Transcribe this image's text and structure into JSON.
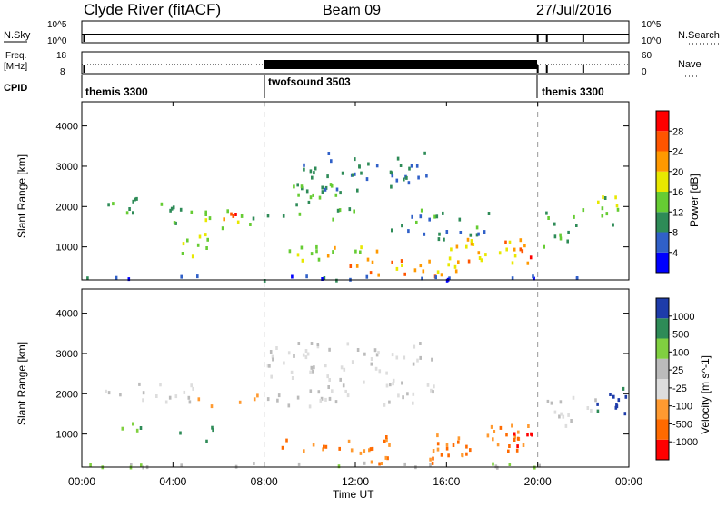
{
  "header": {
    "station": "Clyde River (fitACF)",
    "beam": "Beam 09",
    "date": "27/Jul/2016"
  },
  "status_panels": {
    "nsky_label": "N.Sky",
    "nsky_ticks": [
      "10^5",
      "10^0"
    ],
    "nsearch_label": "N.Search",
    "freq_label_1": "Freq.",
    "freq_label_2": "[MHz]",
    "freq_ticks": [
      "18",
      "8"
    ],
    "nave_label": "Nave",
    "nave_ticks": [
      "60",
      "0"
    ],
    "cpid_label": "CPID",
    "cpid_segments": [
      {
        "name": "themis 3300",
        "start_hour": 0.0,
        "end_hour": 8.0
      },
      {
        "name": "twofsound 3503",
        "start_hour": 8.0,
        "end_hour": 20.0
      },
      {
        "name": "themis 3300",
        "start_hour": 20.0,
        "end_hour": 24.0
      }
    ]
  },
  "colors": {
    "power": [
      "#0000ff",
      "#3060c8",
      "#2e8b57",
      "#66cc33",
      "#e8e800",
      "#ff9900",
      "#ff5500",
      "#ff0000"
    ],
    "velocity": [
      "#ff0000",
      "#ff6a00",
      "#ff9a30",
      "#dddddd",
      "#bbbbbb",
      "#80d040",
      "#2e8b57",
      "#1e3caa"
    ],
    "nsky_line": "#000000"
  },
  "chart_data": [
    {
      "type": "heatmap",
      "panel": "power",
      "ylabel": "Slant Range [km]",
      "y_ticks": [
        "4000",
        "3000",
        "2000",
        "1000"
      ],
      "ylim": [
        180,
        4600
      ],
      "xlim_hours": [
        0,
        24
      ],
      "colorbar_label": "Power [dB]",
      "colorbar_ticks": [
        "28",
        "24",
        "20",
        "16",
        "12",
        "8",
        "4"
      ],
      "colorbar_range": [
        0,
        32
      ],
      "scatter_regions": [
        {
          "h0": 0.8,
          "h1": 2.5,
          "r0": 1800,
          "r1": 2300,
          "level": 12
        },
        {
          "h0": 3.0,
          "h1": 4.2,
          "r0": 1900,
          "r1": 2300,
          "level": 10
        },
        {
          "h0": 4.0,
          "h1": 7.5,
          "r0": 1500,
          "r1": 2000,
          "level": 14
        },
        {
          "h0": 5.5,
          "h1": 7.2,
          "r0": 1600,
          "r1": 1900,
          "level": 26
        },
        {
          "h0": 4.2,
          "h1": 6.0,
          "r0": 800,
          "r1": 1400,
          "level": 16
        },
        {
          "h0": 8.0,
          "h1": 12.0,
          "r0": 1700,
          "r1": 2600,
          "level": 12
        },
        {
          "h0": 9.5,
          "h1": 15.5,
          "r0": 2400,
          "r1": 3400,
          "level": 8
        },
        {
          "h0": 9.0,
          "h1": 13.0,
          "r0": 700,
          "r1": 1100,
          "level": 18
        },
        {
          "h0": 11.0,
          "h1": 17.0,
          "r0": 300,
          "r1": 700,
          "level": 22
        },
        {
          "h0": 16.0,
          "h1": 19.8,
          "r0": 600,
          "r1": 1300,
          "level": 20
        },
        {
          "h0": 18.5,
          "h1": 19.8,
          "r0": 700,
          "r1": 1200,
          "level": 28
        },
        {
          "h0": 13.5,
          "h1": 18.0,
          "r0": 1200,
          "r1": 2000,
          "level": 10
        },
        {
          "h0": 20.2,
          "h1": 22.0,
          "r0": 1000,
          "r1": 2000,
          "level": 12
        },
        {
          "h0": 22.5,
          "h1": 24.0,
          "r0": 1500,
          "r1": 2300,
          "level": 14
        },
        {
          "h0": 0.0,
          "h1": 24.0,
          "r0": 200,
          "r1": 320,
          "level": 6
        }
      ]
    },
    {
      "type": "heatmap",
      "panel": "velocity",
      "ylabel": "Slant Range [km]",
      "y_ticks": [
        "4000",
        "3000",
        "2000",
        "1000"
      ],
      "ylim": [
        180,
        4600
      ],
      "xlim_hours": [
        0,
        24
      ],
      "colorbar_label": "Velocity [m s^-1]",
      "colorbar_ticks": [
        "1000",
        "500",
        "100",
        "25",
        "-25",
        "-100",
        "-500",
        "-1000"
      ],
      "colorbar_range": [
        -1200,
        1200
      ],
      "scatter_regions": [
        {
          "h0": 0.8,
          "h1": 5.0,
          "r0": 1800,
          "r1": 2300,
          "level": 0
        },
        {
          "h0": 5.0,
          "h1": 7.8,
          "r0": 1700,
          "r1": 2100,
          "level": -200
        },
        {
          "h0": 4.2,
          "h1": 5.8,
          "r0": 800,
          "r1": 1300,
          "level": 300
        },
        {
          "h0": 1.5,
          "h1": 2.8,
          "r0": 1100,
          "r1": 1400,
          "level": 300
        },
        {
          "h0": 8.0,
          "h1": 15.5,
          "r0": 1700,
          "r1": 3300,
          "level": 0
        },
        {
          "h0": 8.2,
          "h1": 13.5,
          "r0": 600,
          "r1": 1000,
          "level": -300
        },
        {
          "h0": 11.0,
          "h1": 17.0,
          "r0": 300,
          "r1": 700,
          "level": -300
        },
        {
          "h0": 15.5,
          "h1": 19.8,
          "r0": 600,
          "r1": 1300,
          "level": -300
        },
        {
          "h0": 18.5,
          "h1": 19.8,
          "r0": 700,
          "r1": 1100,
          "level": -800
        },
        {
          "h0": 20.2,
          "h1": 22.5,
          "r0": 1000,
          "r1": 2000,
          "level": 0
        },
        {
          "h0": 22.3,
          "h1": 24.0,
          "r0": 1400,
          "r1": 2200,
          "level": 900
        },
        {
          "h0": 0.0,
          "h1": 24.0,
          "r0": 200,
          "r1": 320,
          "level": 60
        }
      ]
    }
  ],
  "x_axis": {
    "label": "Time UT",
    "ticks": [
      "00:00",
      "04:00",
      "08:00",
      "12:00",
      "16:00",
      "20:00",
      "00:00"
    ]
  }
}
